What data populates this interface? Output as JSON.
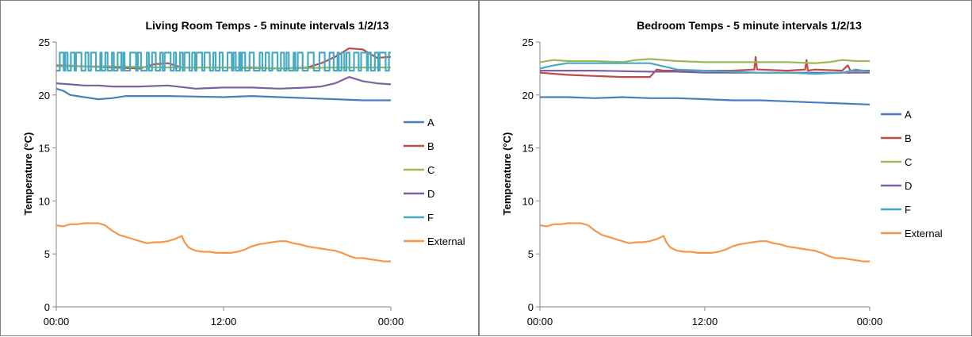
{
  "colors": {
    "A": "#4a7ebb",
    "B": "#be4b48",
    "C": "#98b954",
    "D": "#7d60a0",
    "F": "#46aac5",
    "External": "#f79646",
    "axis": "#868686"
  },
  "chart_data": [
    {
      "type": "line",
      "title": "Living Room Temps - 5 minute intervals 1/2/13",
      "xlabel": "",
      "ylabel": "Temperature (°C)",
      "xlim": [
        0,
        24
      ],
      "ylim": [
        0,
        25
      ],
      "x_ticks": [
        {
          "value": 0,
          "label": "00:00"
        },
        {
          "value": 12,
          "label": "12:00"
        },
        {
          "value": 24,
          "label": "00:00"
        }
      ],
      "y_ticks": [
        0,
        5,
        10,
        15,
        20,
        25
      ],
      "grid": false,
      "legend": "right",
      "series": [
        {
          "name": "A",
          "color_key": "A",
          "x": [
            0,
            0.5,
            1,
            2,
            3,
            4,
            5,
            8,
            12,
            14,
            16,
            18,
            20,
            22,
            24
          ],
          "y": [
            20.6,
            20.4,
            20.0,
            19.8,
            19.6,
            19.7,
            19.9,
            19.9,
            19.8,
            19.9,
            19.8,
            19.7,
            19.6,
            19.5,
            19.5
          ]
        },
        {
          "name": "B",
          "color_key": "B",
          "x": [
            0,
            2,
            4,
            6,
            7,
            8,
            9,
            10,
            12,
            14,
            16,
            18,
            19,
            20,
            21,
            22,
            23,
            24
          ],
          "y": [
            22.8,
            22.7,
            22.6,
            22.5,
            22.9,
            23.0,
            22.6,
            22.6,
            22.6,
            22.6,
            22.5,
            22.6,
            23.0,
            23.6,
            24.4,
            24.3,
            23.5,
            23.6
          ]
        },
        {
          "name": "C",
          "color_key": "C",
          "x": [
            0,
            4,
            8,
            12,
            16,
            20,
            24
          ],
          "y": [
            22.7,
            22.7,
            22.6,
            22.6,
            22.5,
            22.6,
            22.6
          ]
        },
        {
          "name": "D",
          "color_key": "D",
          "x": [
            0,
            1,
            2,
            3,
            4,
            6,
            8,
            10,
            12,
            14,
            16,
            18,
            19,
            20,
            21,
            22,
            23,
            24
          ],
          "y": [
            21.1,
            21.0,
            20.9,
            20.9,
            20.8,
            20.8,
            20.9,
            20.6,
            20.7,
            20.7,
            20.6,
            20.7,
            20.8,
            21.1,
            21.7,
            21.3,
            21.1,
            21.0
          ]
        },
        {
          "name": "F",
          "color_key": "F",
          "oscillate": [
            22.3,
            24.0
          ],
          "x": [
            0,
            24
          ],
          "y": [
            22.3,
            24.0
          ]
        },
        {
          "name": "External",
          "color_key": "External",
          "x": [
            0,
            0.5,
            1,
            1.5,
            2,
            2.5,
            3,
            3.5,
            4,
            4.5,
            5,
            5.5,
            6,
            6.5,
            7,
            7.5,
            8,
            8.5,
            9,
            9.2,
            9.5,
            10,
            10.5,
            11,
            11.5,
            12,
            12.5,
            13,
            13.5,
            14,
            14.5,
            15,
            15.5,
            16,
            16.5,
            17,
            17.5,
            18,
            18.5,
            19,
            19.5,
            20,
            20.5,
            21,
            21.5,
            22,
            22.5,
            23,
            23.5,
            24
          ],
          "y": [
            7.7,
            7.6,
            7.8,
            7.8,
            7.9,
            7.9,
            7.9,
            7.7,
            7.2,
            6.8,
            6.6,
            6.4,
            6.2,
            6.0,
            6.1,
            6.1,
            6.2,
            6.4,
            6.7,
            6.1,
            5.6,
            5.3,
            5.2,
            5.2,
            5.1,
            5.1,
            5.1,
            5.2,
            5.4,
            5.7,
            5.9,
            6.0,
            6.1,
            6.2,
            6.2,
            6.0,
            5.9,
            5.7,
            5.6,
            5.5,
            5.4,
            5.3,
            5.1,
            4.8,
            4.6,
            4.6,
            4.5,
            4.4,
            4.3,
            4.3
          ]
        }
      ]
    },
    {
      "type": "line",
      "title": "Bedroom Temps - 5 minute intervals 1/2/13",
      "xlabel": "",
      "ylabel": "Temperature (°C)",
      "xlim": [
        0,
        24
      ],
      "ylim": [
        0,
        25
      ],
      "x_ticks": [
        {
          "value": 0,
          "label": "00:00"
        },
        {
          "value": 12,
          "label": "12:00"
        },
        {
          "value": 24,
          "label": "00:00"
        }
      ],
      "y_ticks": [
        0,
        5,
        10,
        15,
        20,
        25
      ],
      "grid": false,
      "legend": "right",
      "series": [
        {
          "name": "A",
          "color_key": "A",
          "x": [
            0,
            2,
            4,
            6,
            8,
            10,
            12,
            14,
            16,
            18,
            20,
            22,
            24
          ],
          "y": [
            19.8,
            19.8,
            19.7,
            19.8,
            19.7,
            19.7,
            19.6,
            19.5,
            19.5,
            19.4,
            19.3,
            19.2,
            19.1
          ]
        },
        {
          "name": "B",
          "color_key": "B",
          "x": [
            0,
            2,
            4,
            6,
            8,
            8.5,
            9,
            10,
            12,
            14,
            15.6,
            15.7,
            15.8,
            16,
            18,
            19.3,
            19.4,
            19.5,
            20,
            22,
            22.4,
            22.6,
            23,
            24
          ],
          "y": [
            22.1,
            21.9,
            21.8,
            21.7,
            21.7,
            22.4,
            22.3,
            22.3,
            22.3,
            22.3,
            22.4,
            23.6,
            22.4,
            22.4,
            22.3,
            22.4,
            23.3,
            22.3,
            22.4,
            22.3,
            22.8,
            22.3,
            22.3,
            22.3
          ]
        },
        {
          "name": "C",
          "color_key": "C",
          "x": [
            0,
            1,
            2,
            4,
            6,
            7,
            8,
            10,
            12,
            14,
            16,
            18,
            20,
            21,
            22,
            23,
            24
          ],
          "y": [
            23.1,
            23.3,
            23.2,
            23.2,
            23.1,
            23.3,
            23.4,
            23.2,
            23.1,
            23.1,
            23.1,
            23.1,
            23.0,
            23.1,
            23.3,
            23.2,
            23.2
          ]
        },
        {
          "name": "D",
          "color_key": "D",
          "x": [
            0,
            4,
            8,
            10,
            12,
            16,
            20,
            24
          ],
          "y": [
            22.3,
            22.3,
            22.2,
            22.2,
            22.1,
            22.1,
            22.1,
            22.1
          ]
        },
        {
          "name": "F",
          "color_key": "F",
          "x": [
            0,
            1,
            2,
            4,
            6,
            8,
            9,
            10,
            12,
            14,
            16,
            18,
            20,
            22,
            23,
            24
          ],
          "y": [
            22.5,
            22.8,
            23.0,
            23.0,
            23.0,
            23.0,
            22.7,
            22.4,
            22.3,
            22.2,
            22.1,
            22.1,
            22.0,
            22.1,
            22.4,
            22.2
          ]
        },
        {
          "name": "External",
          "color_key": "External",
          "x": [
            0,
            0.5,
            1,
            1.5,
            2,
            2.5,
            3,
            3.5,
            4,
            4.5,
            5,
            5.5,
            6,
            6.5,
            7,
            7.5,
            8,
            8.5,
            9,
            9.2,
            9.5,
            10,
            10.5,
            11,
            11.5,
            12,
            12.5,
            13,
            13.5,
            14,
            14.5,
            15,
            15.5,
            16,
            16.5,
            17,
            17.5,
            18,
            18.5,
            19,
            19.5,
            20,
            20.5,
            21,
            21.5,
            22,
            22.5,
            23,
            23.5,
            24
          ],
          "y": [
            7.7,
            7.6,
            7.8,
            7.8,
            7.9,
            7.9,
            7.9,
            7.7,
            7.2,
            6.8,
            6.6,
            6.4,
            6.2,
            6.0,
            6.1,
            6.1,
            6.2,
            6.4,
            6.7,
            6.1,
            5.6,
            5.3,
            5.2,
            5.2,
            5.1,
            5.1,
            5.1,
            5.2,
            5.4,
            5.7,
            5.9,
            6.0,
            6.1,
            6.2,
            6.2,
            6.0,
            5.9,
            5.7,
            5.6,
            5.5,
            5.4,
            5.3,
            5.1,
            4.8,
            4.6,
            4.6,
            4.5,
            4.4,
            4.3,
            4.3
          ]
        }
      ]
    }
  ]
}
